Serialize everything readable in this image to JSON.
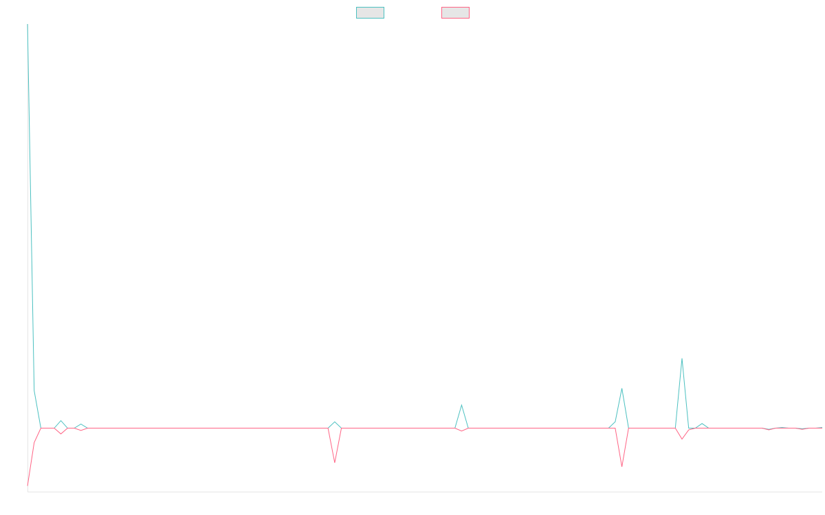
{
  "chart_data": {
    "type": "line",
    "title": "",
    "xlabel": "",
    "ylabel": "",
    "legend_placement": "top-center",
    "grid": false,
    "x": [
      0,
      1,
      2,
      3,
      4,
      5,
      6,
      7,
      8,
      9,
      10,
      11,
      12,
      13,
      14,
      15,
      16,
      17,
      18,
      19,
      20,
      21,
      22,
      23,
      24,
      25,
      26,
      27,
      28,
      29,
      30,
      31,
      32,
      33,
      34,
      35,
      36,
      37,
      38,
      39,
      40,
      41,
      42,
      43,
      44,
      45,
      46,
      47,
      48,
      49,
      50,
      51,
      52,
      53,
      54,
      55,
      56,
      57,
      58,
      59,
      60,
      61,
      62,
      63,
      64,
      65,
      66,
      67,
      68,
      69,
      70,
      71,
      72,
      73,
      74,
      75,
      76,
      77,
      78,
      79,
      80,
      81,
      82,
      83,
      84,
      85,
      86,
      87,
      88,
      89,
      90,
      91,
      92,
      93,
      94,
      95,
      96,
      97,
      98,
      99,
      100,
      101,
      102,
      103,
      104,
      105,
      106,
      107,
      108,
      109,
      110,
      111,
      112,
      113,
      114,
      115,
      116,
      117,
      118,
      119
    ],
    "ylim": [
      -11,
      70
    ],
    "xlim": [
      0,
      119
    ],
    "series": [
      {
        "name": "",
        "color": "#4bc0c0",
        "values": [
          70,
          6.5,
          0,
          0,
          0,
          1.3,
          0,
          0,
          0.7,
          0,
          0,
          0,
          0,
          0,
          0,
          0,
          0,
          0,
          0,
          0,
          0,
          0,
          0,
          0,
          0,
          0,
          0,
          0,
          0,
          0,
          0,
          0,
          0,
          0,
          0,
          0,
          0,
          0,
          0,
          0,
          0,
          0,
          0,
          0,
          0,
          0,
          1.1,
          0,
          0,
          0,
          0,
          0,
          0,
          0,
          0,
          0,
          0,
          0,
          0,
          0,
          0,
          0,
          0,
          0,
          0,
          4,
          0,
          0,
          0,
          0,
          0,
          0,
          0,
          0,
          0,
          0,
          0,
          0,
          0,
          0,
          0,
          0,
          0,
          0,
          0,
          0,
          0,
          0,
          1.1,
          6.9,
          0,
          0,
          0,
          0,
          0,
          0,
          0,
          0,
          12.1,
          0,
          0,
          0.8,
          0,
          0,
          0,
          0,
          0,
          0,
          0,
          0,
          0,
          -0.2,
          0,
          0.1,
          0,
          0,
          -0.1,
          0,
          0,
          0.1
        ]
      },
      {
        "name": "",
        "color": "#ff6384",
        "values": [
          -10,
          -2.5,
          0,
          0,
          0,
          -1,
          0,
          0,
          -0.4,
          0,
          0,
          0,
          0,
          0,
          0,
          0,
          0,
          0,
          0,
          0,
          0,
          0,
          0,
          0,
          0,
          0,
          0,
          0,
          0,
          0,
          0,
          0,
          0,
          0,
          0,
          0,
          0,
          0,
          0,
          0,
          0,
          0,
          0,
          0,
          0,
          0,
          -6,
          0,
          0,
          0,
          0,
          0,
          0,
          0,
          0,
          0,
          0,
          0,
          0,
          0,
          0,
          0,
          0,
          0,
          0,
          -0.5,
          0,
          0,
          0,
          0,
          0,
          0,
          0,
          0,
          0,
          0,
          0,
          0,
          0,
          0,
          0,
          0,
          0,
          0,
          0,
          0,
          0,
          0,
          0,
          -6.7,
          0,
          0,
          0,
          0,
          0,
          0,
          0,
          0,
          -1.9,
          -0.3,
          0,
          0,
          0,
          0,
          0,
          0,
          0,
          0,
          0,
          0,
          0,
          -0.3,
          0,
          0,
          0,
          0,
          -0.2,
          0,
          0,
          0
        ]
      }
    ]
  }
}
